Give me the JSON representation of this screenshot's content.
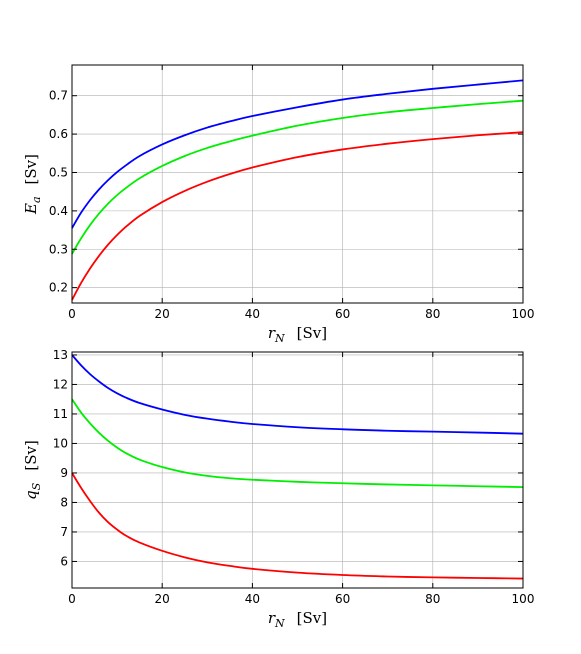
{
  "chart_data": [
    {
      "type": "line",
      "xlabel": "r_N [Sv]",
      "xlabel_parts": {
        "var": "r",
        "sub": "N",
        "unit": "[Sv]"
      },
      "ylabel": "E_a [Sv]",
      "ylabel_parts": {
        "var": "E",
        "sub": "a",
        "unit": "[Sv]"
      },
      "xlim": [
        0,
        100
      ],
      "ylim": [
        0.16,
        0.78
      ],
      "xticks": [
        0,
        20,
        40,
        60,
        80,
        100
      ],
      "yticks": [
        0.2,
        0.3,
        0.4,
        0.5,
        0.6,
        0.7
      ],
      "ytick_labels": [
        "0.2",
        "0.3",
        "0.4",
        "0.5",
        "0.6",
        "0.7"
      ],
      "grid": true,
      "x": [
        0,
        2,
        4,
        6,
        8,
        10,
        12,
        15,
        20,
        25,
        30,
        35,
        40,
        50,
        60,
        70,
        80,
        90,
        100
      ],
      "series": [
        {
          "color": "#0000ff",
          "values": [
            0.355,
            0.395,
            0.428,
            0.456,
            0.48,
            0.501,
            0.519,
            0.543,
            0.573,
            0.597,
            0.617,
            0.633,
            0.647,
            0.67,
            0.69,
            0.705,
            0.718,
            0.729,
            0.74
          ]
        },
        {
          "color": "#00ee00",
          "values": [
            0.288,
            0.328,
            0.363,
            0.393,
            0.419,
            0.441,
            0.46,
            0.485,
            0.517,
            0.543,
            0.564,
            0.581,
            0.596,
            0.622,
            0.642,
            0.657,
            0.668,
            0.678,
            0.687
          ]
        },
        {
          "color": "#ff0000",
          "values": [
            0.168,
            0.212,
            0.25,
            0.283,
            0.312,
            0.337,
            0.359,
            0.387,
            0.423,
            0.452,
            0.476,
            0.496,
            0.513,
            0.54,
            0.56,
            0.575,
            0.587,
            0.597,
            0.605
          ]
        }
      ]
    },
    {
      "type": "line",
      "xlabel": "r_N [Sv]",
      "xlabel_parts": {
        "var": "r",
        "sub": "N",
        "unit": "[Sv]"
      },
      "ylabel": "q_S [Sv]",
      "ylabel_parts": {
        "var": "q",
        "sub": "S",
        "unit": "[Sv]"
      },
      "xlim": [
        0,
        100
      ],
      "ylim": [
        5.1,
        13.1
      ],
      "xticks": [
        0,
        20,
        40,
        60,
        80,
        100
      ],
      "yticks": [
        6,
        7,
        8,
        9,
        10,
        11,
        12,
        13
      ],
      "ytick_labels": [
        "6",
        "7",
        "8",
        "9",
        "10",
        "11",
        "12",
        "13"
      ],
      "grid": true,
      "x": [
        0,
        2,
        4,
        6,
        8,
        10,
        12,
        15,
        20,
        25,
        30,
        35,
        40,
        50,
        60,
        70,
        80,
        90,
        100
      ],
      "series": [
        {
          "color": "#0000ff",
          "values": [
            13.0,
            12.65,
            12.35,
            12.1,
            11.88,
            11.7,
            11.55,
            11.37,
            11.15,
            10.97,
            10.84,
            10.74,
            10.66,
            10.55,
            10.48,
            10.43,
            10.4,
            10.37,
            10.33
          ]
        },
        {
          "color": "#00ee00",
          "values": [
            11.5,
            11.05,
            10.68,
            10.36,
            10.09,
            9.86,
            9.67,
            9.45,
            9.2,
            9.02,
            8.9,
            8.82,
            8.77,
            8.7,
            8.65,
            8.61,
            8.58,
            8.55,
            8.52
          ]
        },
        {
          "color": "#ff0000",
          "values": [
            9.0,
            8.5,
            8.05,
            7.65,
            7.33,
            7.08,
            6.87,
            6.64,
            6.36,
            6.14,
            5.97,
            5.85,
            5.75,
            5.62,
            5.54,
            5.49,
            5.46,
            5.44,
            5.42
          ]
        }
      ]
    }
  ]
}
